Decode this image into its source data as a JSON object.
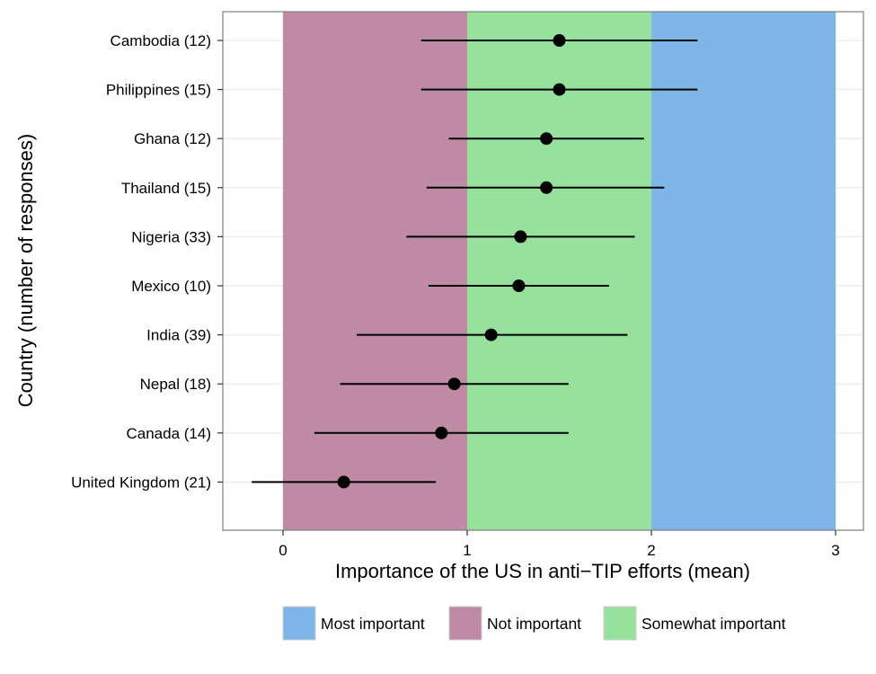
{
  "chart_data": {
    "type": "scatter",
    "subtype": "dot-with-error-bars",
    "title": "",
    "xlabel": "Importance of the US in anti−TIP efforts (mean)",
    "ylabel": "Country (number of responses)",
    "xlim": [
      -0.33,
      3.15
    ],
    "xticks": [
      0,
      1,
      2,
      3
    ],
    "xtick_labels": [
      "0",
      "1",
      "2",
      "3"
    ],
    "grid": true,
    "legend_position": "bottom",
    "bands": [
      {
        "name": "Most important",
        "from": 2,
        "to": 3,
        "color": "#7fb6e9"
      },
      {
        "name": "Not important",
        "from": 0,
        "to": 1,
        "color": "#bf8aa4"
      },
      {
        "name": "Somewhat important",
        "from": 1,
        "to": 2,
        "color": "#96e29c"
      }
    ],
    "points": [
      {
        "label": "Cambodia (12)",
        "mean": 1.5,
        "low": 0.75,
        "high": 2.25
      },
      {
        "label": "Philippines (15)",
        "mean": 1.5,
        "low": 0.75,
        "high": 2.25
      },
      {
        "label": "Ghana (12)",
        "mean": 1.43,
        "low": 0.9,
        "high": 1.96
      },
      {
        "label": "Thailand (15)",
        "mean": 1.43,
        "low": 0.78,
        "high": 2.07
      },
      {
        "label": "Nigeria (33)",
        "mean": 1.29,
        "low": 0.67,
        "high": 1.91
      },
      {
        "label": "Mexico (10)",
        "mean": 1.28,
        "low": 0.79,
        "high": 1.77
      },
      {
        "label": "India (39)",
        "mean": 1.13,
        "low": 0.4,
        "high": 1.87
      },
      {
        "label": "Nepal (18)",
        "mean": 0.93,
        "low": 0.31,
        "high": 1.55
      },
      {
        "label": "Canada (14)",
        "mean": 0.86,
        "low": 0.17,
        "high": 1.55
      },
      {
        "label": "United Kingdom (21)",
        "mean": 0.33,
        "low": -0.17,
        "high": 0.83
      }
    ]
  }
}
